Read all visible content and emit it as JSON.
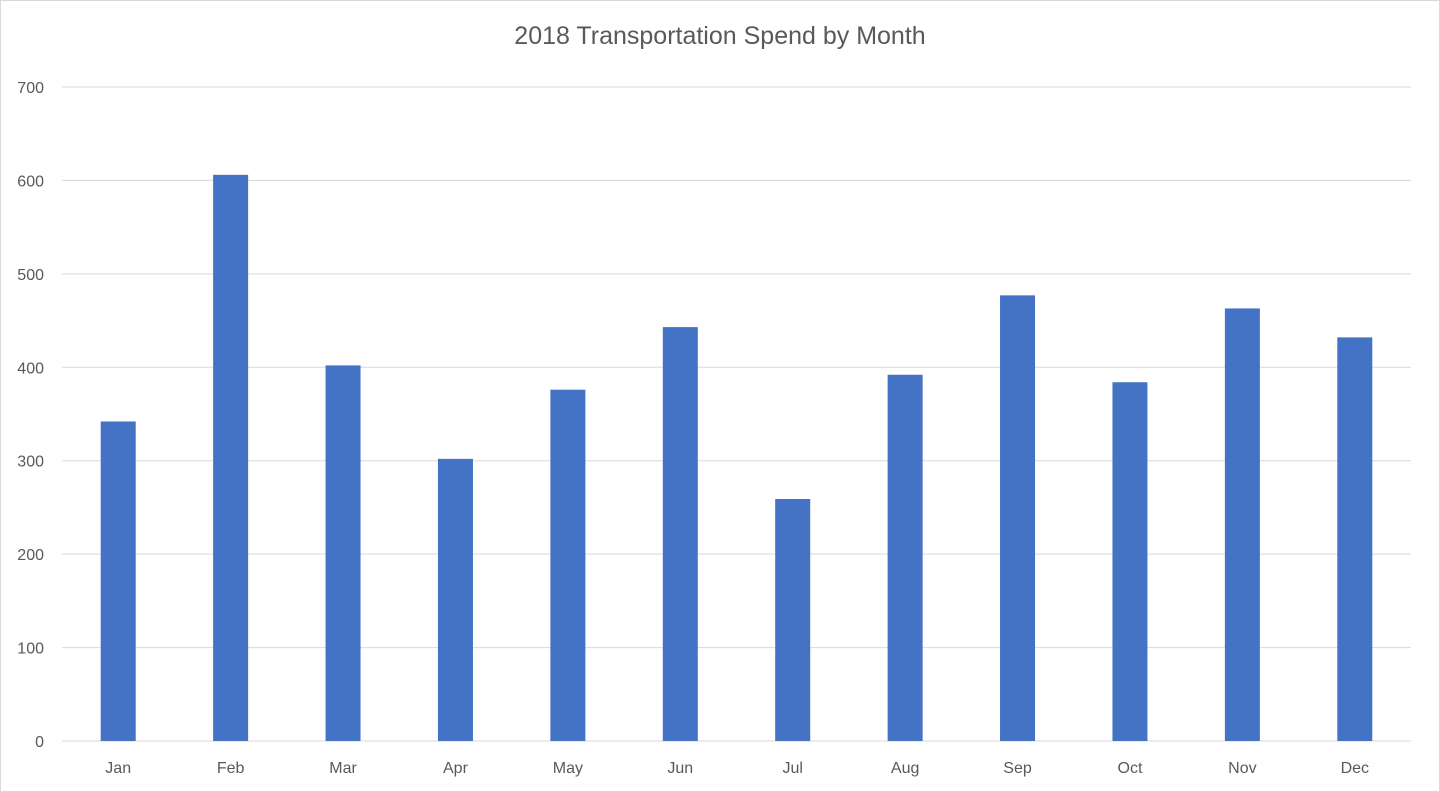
{
  "chart_data": {
    "type": "bar",
    "title": "2018 Transportation Spend by Month",
    "xlabel": "",
    "ylabel": "",
    "categories": [
      "Jan",
      "Feb",
      "Mar",
      "Apr",
      "May",
      "Jun",
      "Jul",
      "Aug",
      "Sep",
      "Oct",
      "Nov",
      "Dec"
    ],
    "values": [
      342,
      606,
      402,
      302,
      376,
      443,
      259,
      392,
      477,
      384,
      463,
      432
    ],
    "ylim": [
      0,
      700
    ],
    "yticks": [
      0,
      100,
      200,
      300,
      400,
      500,
      600,
      700
    ],
    "grid": true,
    "legend": "none",
    "bar_color": "#4472c4",
    "grid_color": "#d9d9d9"
  }
}
